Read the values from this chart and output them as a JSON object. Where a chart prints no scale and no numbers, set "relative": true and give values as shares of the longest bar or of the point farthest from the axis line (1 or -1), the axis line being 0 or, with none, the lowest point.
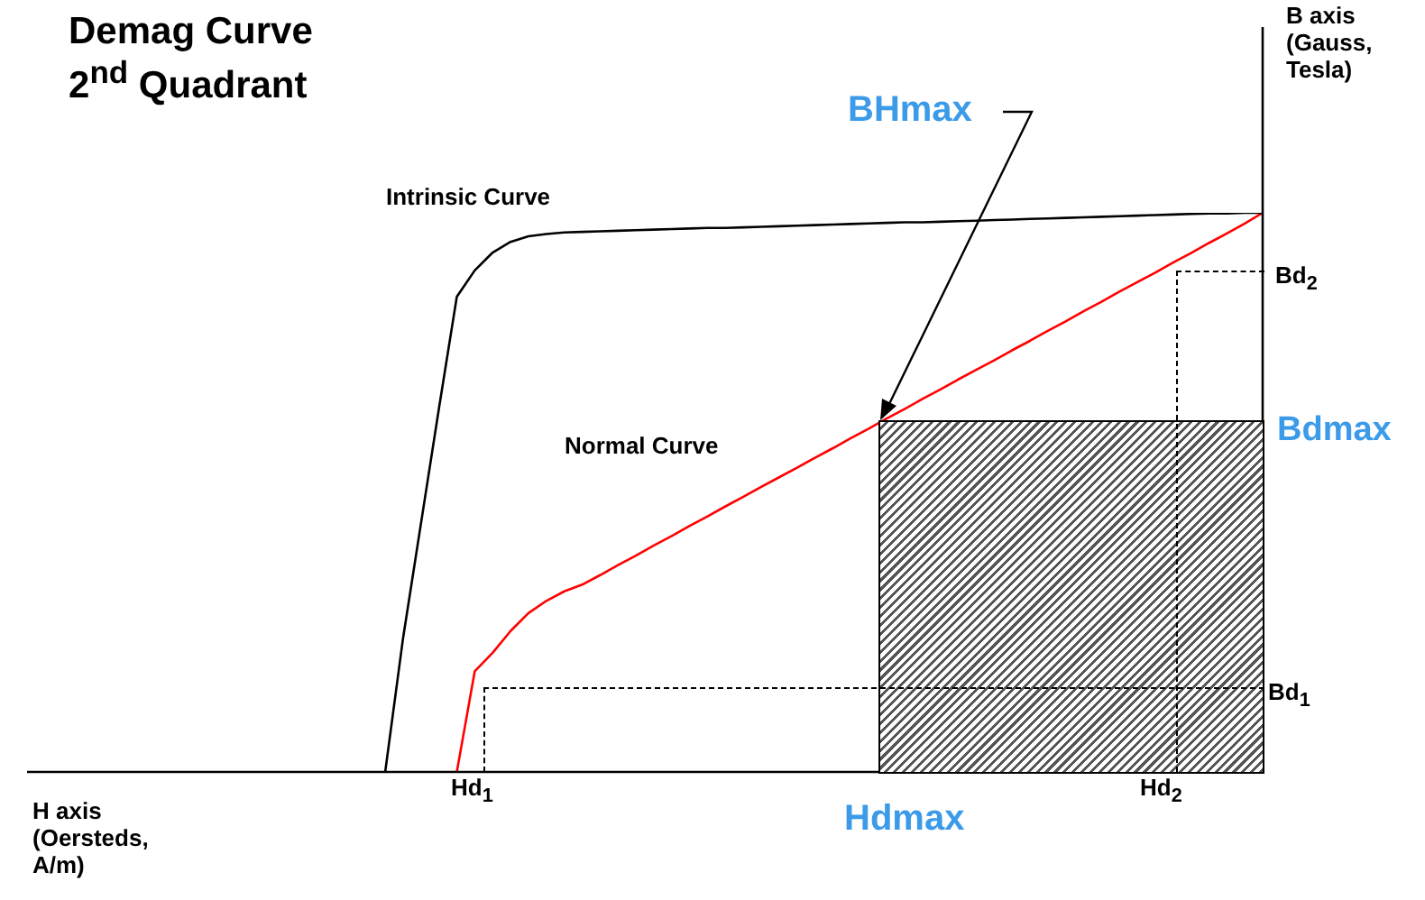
{
  "chart_data": {
    "type": "line",
    "title": "Demag Curve\n2$^{nd}$ Quadrant",
    "xlabel": "H axis\n(Oersteds,\nA/m)",
    "relative": true,
    "legend": false,
    "marker": "none",
    "annotations": [
      "BHmax",
      "Bdmax",
      "Hdmax",
      "Hd$_{1}$",
      "Hd$_{2}$",
      "Bd$_{1}$",
      "Bd$_{2}$",
      "B axis\n(Gauss,\nTesla)"
    ],
    "categories": [
      null,
      null,
      null,
      null,
      null,
      null,
      null,
      null,
      null,
      null,
      null,
      null,
      null,
      null,
      null,
      null,
      null,
      null,
      null,
      null,
      null,
      null,
      null,
      null,
      null,
      null,
      null,
      null,
      null,
      null,
      null,
      null,
      null,
      null,
      null,
      null,
      null,
      null,
      null,
      null,
      null,
      null,
      null,
      null,
      null,
      null,
      null,
      null,
      null,
      null,
      null,
      null,
      null,
      null,
      null,
      null,
      null,
      null,
      null,
      null,
      null,
      null,
      null,
      null,
      null,
      null,
      null,
      null,
      null,
      null
    ],
    "series": [
      {
        "name": "Intrinsic Curve",
        "color": "#000000",
        "values": [
          null,
          null,
          null,
          null,
          null,
          null,
          null,
          null,
          null,
          null,
          null,
          null,
          null,
          null,
          null,
          null,
          null,
          null,
          null,
          null,
          0,
          0.24,
          0.445,
          0.65,
          0.85,
          0.897,
          0.929,
          0.948,
          0.958,
          0.962,
          0.965,
          0.966,
          0.967,
          0.968,
          0.969,
          0.97,
          0.971,
          0.972,
          0.973,
          0.973,
          0.974,
          0.975,
          0.976,
          0.977,
          0.978,
          0.979,
          0.98,
          0.981,
          0.982,
          0.983,
          0.983,
          0.984,
          0.985,
          0.986,
          0.987,
          0.988,
          0.989,
          0.99,
          0.991,
          0.992,
          0.993,
          0.994,
          0.995,
          0.996,
          0.997,
          0.998,
          0.999,
          0.999,
          1,
          1
        ]
      },
      {
        "name": "Normal Curve",
        "color": "#ff0000",
        "values": [
          null,
          null,
          null,
          null,
          null,
          null,
          null,
          null,
          null,
          null,
          null,
          null,
          null,
          null,
          null,
          null,
          null,
          null,
          null,
          null,
          null,
          null,
          null,
          null,
          0,
          0.18,
          0.213,
          0.252,
          0.284,
          0.306,
          0.323,
          0.335,
          0.352,
          0.37,
          0.387,
          0.405,
          0.422,
          0.44,
          0.457,
          0.475,
          0.492,
          0.51,
          0.527,
          0.544,
          0.562,
          0.579,
          0.597,
          0.614,
          0.632,
          0.649,
          0.667,
          0.684,
          0.702,
          0.719,
          0.736,
          0.754,
          0.771,
          0.789,
          0.806,
          0.824,
          0.841,
          0.859,
          0.876,
          0.893,
          0.911,
          0.928,
          0.946,
          0.963,
          0.981,
          1
        ]
      }
    ]
  }
}
